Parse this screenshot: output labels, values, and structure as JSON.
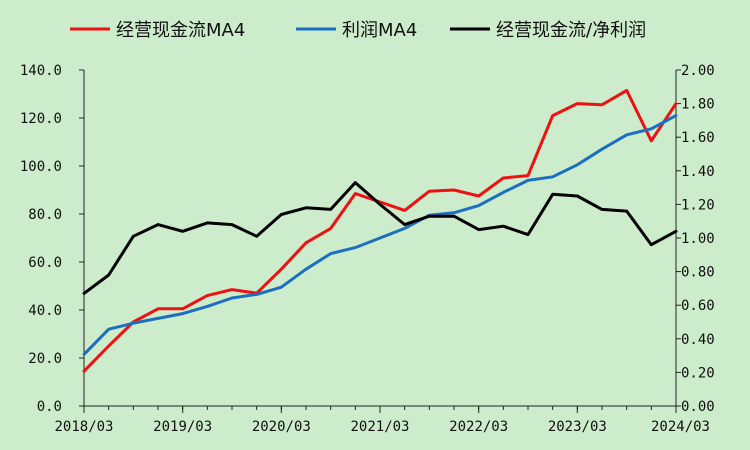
{
  "chart_data": {
    "type": "line",
    "x": [
      "2018/03",
      "2018/06",
      "2018/09",
      "2018/12",
      "2019/03",
      "2019/06",
      "2019/09",
      "2019/12",
      "2020/03",
      "2020/06",
      "2020/09",
      "2020/12",
      "2021/03",
      "2021/06",
      "2021/09",
      "2021/12",
      "2022/03",
      "2022/06",
      "2022/09",
      "2022/12",
      "2023/03",
      "2023/06",
      "2023/09",
      "2023/12",
      "2024/03"
    ],
    "xticks": [
      "2018/03",
      "2019/03",
      "2020/03",
      "2021/03",
      "2022/03",
      "2023/03",
      "2024/03"
    ],
    "series": [
      {
        "name": "经营现金流MA4",
        "axis": "left",
        "color": "#ee1111",
        "values": [
          14.5,
          25.0,
          35.0,
          40.5,
          40.5,
          46.0,
          48.5,
          47.0,
          57.0,
          68.0,
          74.0,
          88.5,
          85.0,
          81.5,
          89.5,
          90.0,
          87.5,
          95.0,
          96.0,
          121.0,
          126.0,
          125.5,
          131.5,
          110.5,
          126.0
        ]
      },
      {
        "name": "利润MA4",
        "axis": "left",
        "color": "#1a6fc0",
        "values": [
          21.5,
          32.0,
          34.5,
          36.5,
          38.5,
          41.5,
          45.0,
          46.5,
          49.5,
          57.0,
          63.5,
          66.0,
          70.0,
          74.0,
          79.5,
          80.5,
          83.5,
          89.0,
          94.0,
          95.5,
          100.5,
          107.0,
          113.0,
          115.5,
          121.0
        ]
      },
      {
        "name": "经营现金流/净利润",
        "axis": "right",
        "color": "#000000",
        "values": [
          0.67,
          0.78,
          1.01,
          1.08,
          1.04,
          1.09,
          1.08,
          1.01,
          1.14,
          1.18,
          1.17,
          1.33,
          1.2,
          1.08,
          1.13,
          1.13,
          1.05,
          1.07,
          1.02,
          1.26,
          1.25,
          1.17,
          1.16,
          0.96,
          1.04
        ]
      }
    ],
    "y_left": {
      "ylim": [
        0,
        140
      ],
      "ticks": [
        "0.0",
        "20.0",
        "40.0",
        "60.0",
        "80.0",
        "100.0",
        "120.0",
        "140.0"
      ]
    },
    "y_right": {
      "ylim": [
        0,
        2.0
      ],
      "ticks": [
        "0.00",
        "0.20",
        "0.40",
        "0.60",
        "0.80",
        "1.00",
        "1.20",
        "1.40",
        "1.60",
        "1.80",
        "2.00"
      ]
    },
    "grid": false,
    "legend": "top"
  }
}
